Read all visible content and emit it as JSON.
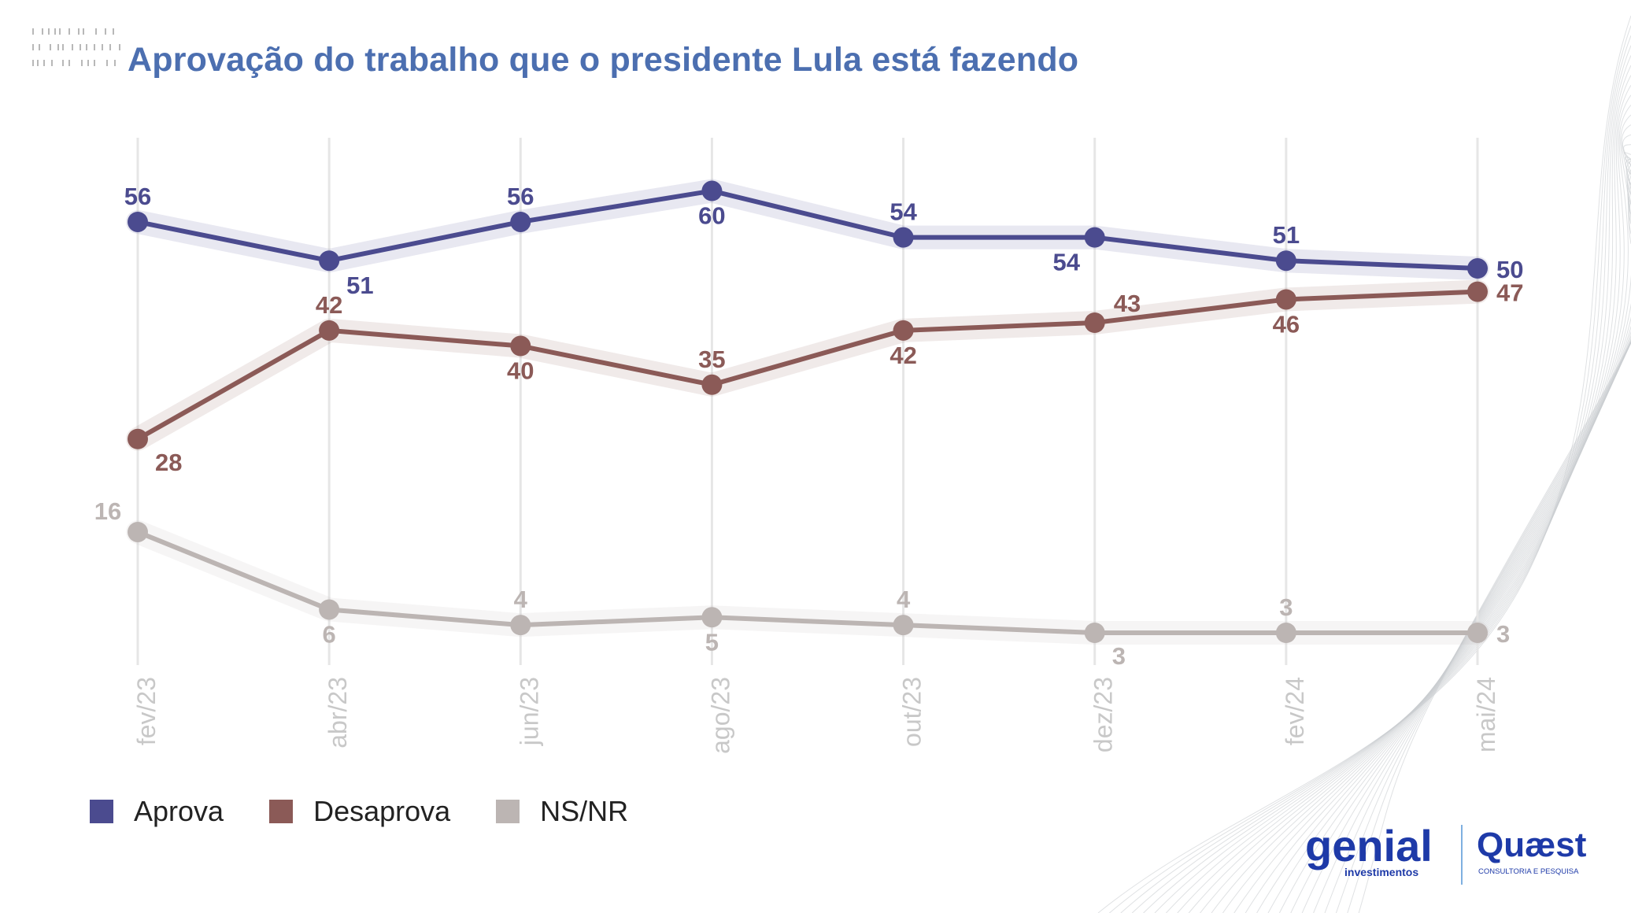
{
  "title": "Aprovação do trabalho que o presidente Lula está fazendo",
  "colors": {
    "aprova": "#4b4b8f",
    "desaprova": "#8b5a57",
    "nsnr": "#bcb5b3",
    "title": "#4c6fb0",
    "grid": "#e6e6e6",
    "tick": "#c8c8c8"
  },
  "legend": [
    {
      "label": "Aprova",
      "color": "#4b4b8f"
    },
    {
      "label": "Desaprova",
      "color": "#8b5a57"
    },
    {
      "label": "NS/NR",
      "color": "#bcb5b3"
    }
  ],
  "logos": {
    "genial_text": "genial",
    "genial_sub": "investimentos",
    "quaest_text": "Quæst",
    "quaest_sub": "CONSULTORIA E PESQUISA"
  },
  "chart_data": {
    "type": "line",
    "title": "Aprovação do trabalho que o presidente Lula está fazendo",
    "categories": [
      "fev/23",
      "abr/23",
      "jun/23",
      "ago/23",
      "out/23",
      "dez/23",
      "fev/24",
      "mai/24"
    ],
    "series": [
      {
        "name": "Aprova",
        "values": [
          56,
          51,
          56,
          60,
          54,
          54,
          51,
          50
        ],
        "color": "#4b4b8f"
      },
      {
        "name": "Desaprova",
        "values": [
          28,
          42,
          40,
          35,
          42,
          43,
          46,
          47
        ],
        "color": "#8b5a57"
      },
      {
        "name": "NS/NR",
        "values": [
          16,
          6,
          4,
          5,
          4,
          3,
          3,
          3
        ],
        "color": "#bcb5b3"
      }
    ],
    "label_positions": [
      [
        "above",
        "below",
        "above",
        "below",
        "above",
        "below",
        "above",
        "right"
      ],
      [
        "right-below",
        "above",
        "below",
        "above",
        "below",
        "right-above",
        "below",
        "right"
      ],
      [
        "above",
        "below",
        "above",
        "below",
        "above",
        "right-below",
        "above",
        "right"
      ]
    ],
    "ylim": [
      0,
      64
    ],
    "grid": "vertical",
    "legend_position": "bottom-left"
  }
}
